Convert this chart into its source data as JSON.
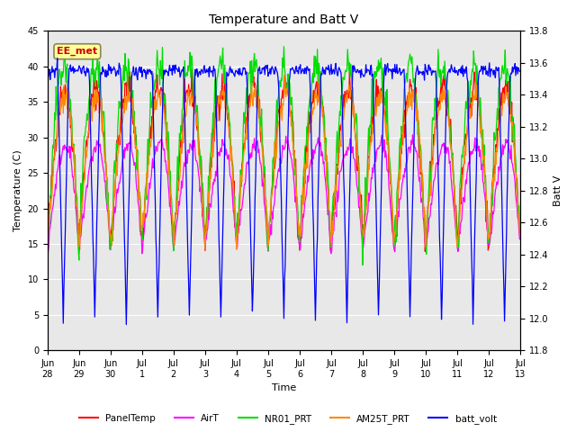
{
  "title": "Temperature and Batt V",
  "xlabel": "Time",
  "ylabel_left": "Temperature (C)",
  "ylabel_right": "Batt V",
  "annotation": "EE_met",
  "ylim_left": [
    0,
    45
  ],
  "ylim_right": [
    11.8,
    13.8
  ],
  "yticks_left": [
    0,
    5,
    10,
    15,
    20,
    25,
    30,
    35,
    40,
    45
  ],
  "yticks_right": [
    11.8,
    12.0,
    12.2,
    12.4,
    12.6,
    12.8,
    13.0,
    13.2,
    13.4,
    13.6,
    13.8
  ],
  "legend_entries": [
    "PanelTemp",
    "AirT",
    "NR01_PRT",
    "AM25T_PRT",
    "batt_volt"
  ],
  "legend_colors": [
    "#ff0000",
    "#ff00ff",
    "#00dd00",
    "#ff8800",
    "#0000ff"
  ],
  "background_color": "#ffffff",
  "plot_bg_color": "#e8e8e8",
  "grid_color": "#ffffff",
  "figsize": [
    6.4,
    4.8
  ],
  "dpi": 100,
  "seed": 42
}
